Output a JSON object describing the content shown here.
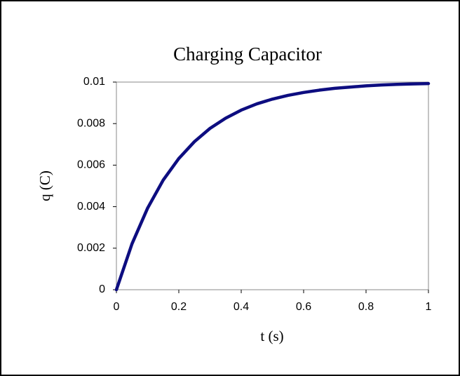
{
  "chart_data": {
    "type": "line",
    "title": "Charging Capacitor",
    "x_label": "t (s)",
    "y_label": "q (C)",
    "x": [
      0,
      0.05,
      0.1,
      0.15,
      0.2,
      0.25,
      0.3,
      0.35,
      0.4,
      0.45,
      0.5,
      0.55,
      0.6,
      0.65,
      0.7,
      0.75,
      0.8,
      0.85,
      0.9,
      0.95,
      1
    ],
    "series": [
      {
        "name": "q",
        "color": "#0d0d80",
        "values": [
          0,
          0.00221,
          0.00393,
          0.00528,
          0.00632,
          0.00713,
          0.00777,
          0.00826,
          0.00865,
          0.00895,
          0.00918,
          0.00936,
          0.0095,
          0.00961,
          0.0097,
          0.00976,
          0.00982,
          0.00986,
          0.00989,
          0.00991,
          0.00993
        ]
      }
    ],
    "xlim": [
      0,
      1
    ],
    "xticks": [
      0,
      0.2,
      0.4,
      0.6,
      0.8,
      1
    ],
    "ylim": [
      0,
      0.01
    ],
    "yticks": [
      0,
      0.002,
      0.004,
      0.006,
      0.008,
      0.01
    ],
    "grid": false
  }
}
